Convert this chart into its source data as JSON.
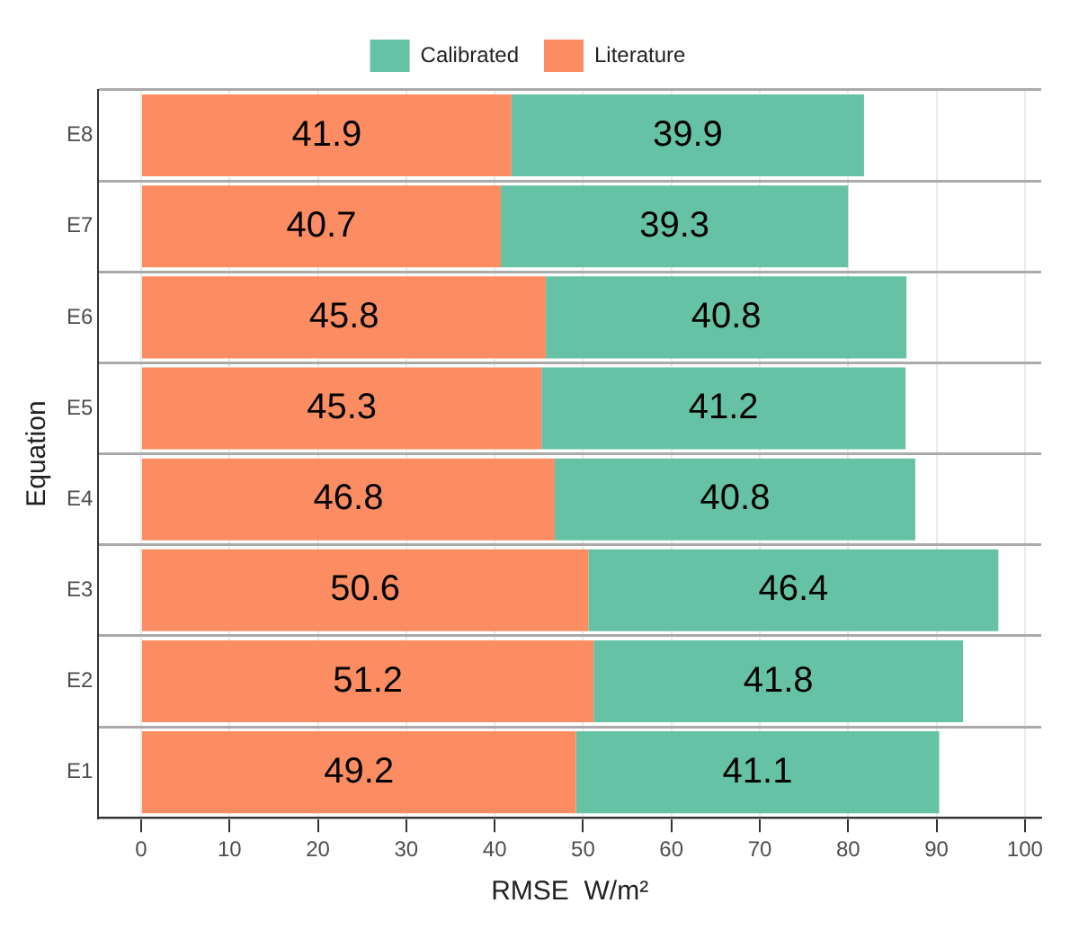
{
  "chart_data": {
    "type": "bar",
    "orientation": "horizontal",
    "stacked": true,
    "xlabel": "RMSE  W/m²",
    "ylabel": "Equation",
    "categories": [
      "E8",
      "E7",
      "E6",
      "E5",
      "E4",
      "E3",
      "E2",
      "E1"
    ],
    "series": [
      {
        "name": "Literature",
        "color": "#fc8d62",
        "values": [
          41.9,
          40.7,
          45.8,
          45.3,
          46.8,
          50.6,
          51.2,
          49.2
        ]
      },
      {
        "name": "Calibrated",
        "color": "#66c2a5",
        "values": [
          39.9,
          39.3,
          40.8,
          41.2,
          40.8,
          46.4,
          41.8,
          41.1
        ]
      }
    ],
    "xlim": [
      -4.85,
      101.85
    ],
    "xticks": [
      0,
      10,
      20,
      30,
      40,
      50,
      60,
      70,
      80,
      90,
      100
    ],
    "data_labels": true,
    "grid": true,
    "legend": "top"
  }
}
